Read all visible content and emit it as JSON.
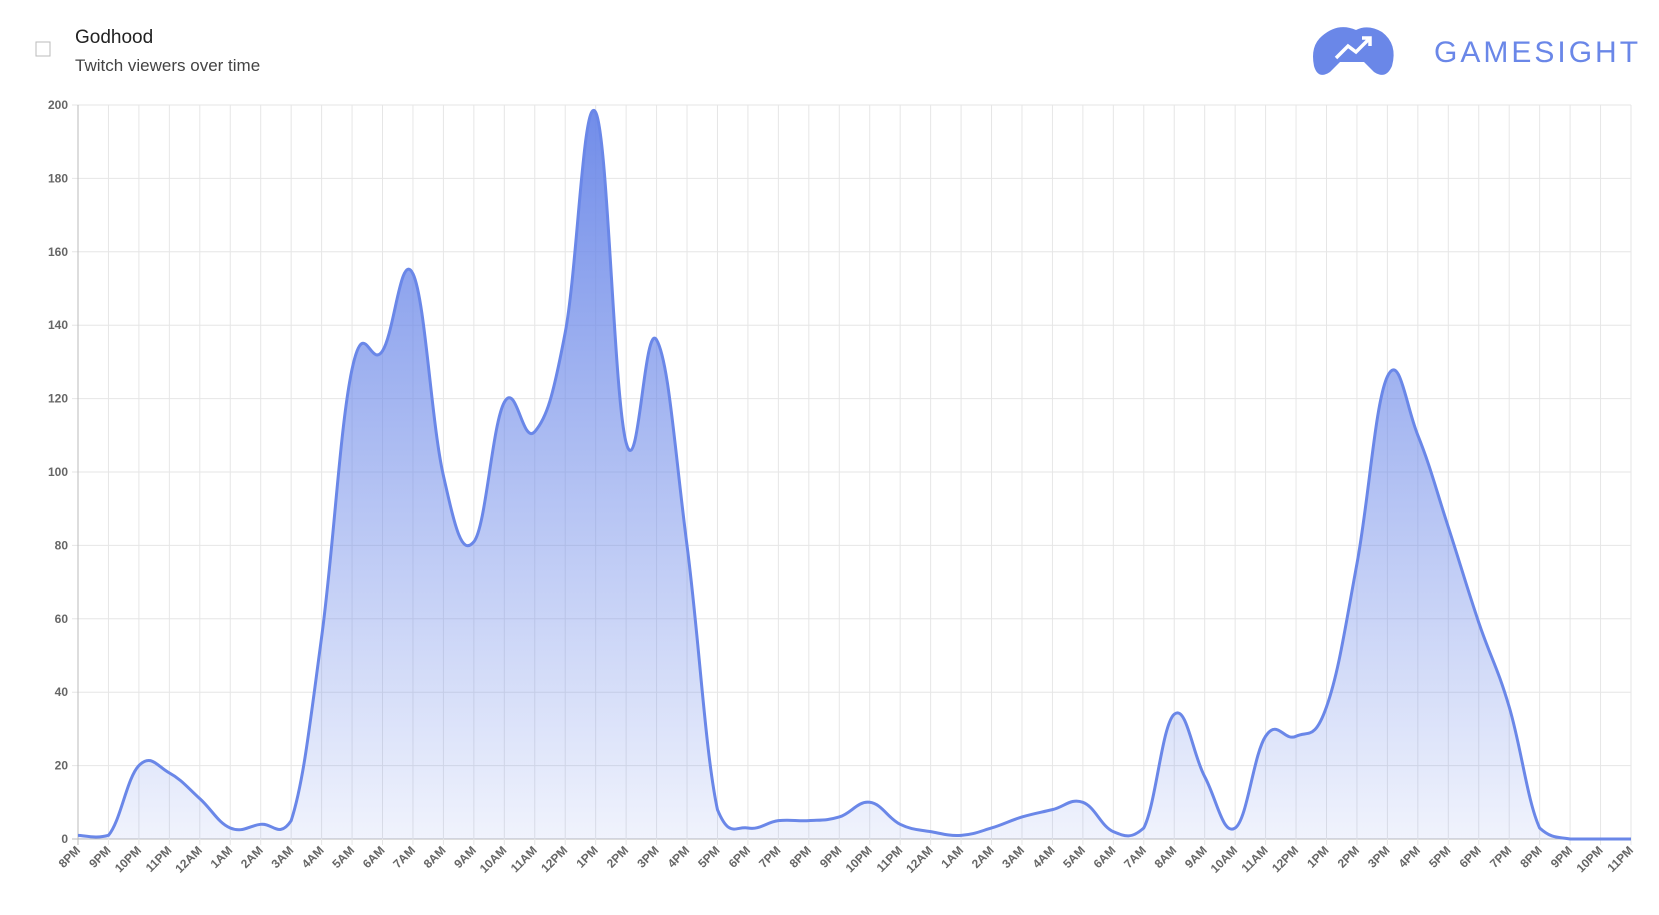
{
  "brand": "GAMESIGHT",
  "chart_data": {
    "type": "line",
    "title": "Godhood",
    "subtitle": "Twitch viewers over time",
    "categories": [
      "8PM",
      "9PM",
      "10PM",
      "11PM",
      "12AM",
      "1AM",
      "2AM",
      "3AM",
      "4AM",
      "5AM",
      "6AM",
      "7AM",
      "8AM",
      "9AM",
      "10AM",
      "11AM",
      "12PM",
      "1PM",
      "2PM",
      "3PM",
      "4PM",
      "5PM",
      "6PM",
      "7PM",
      "8PM",
      "9PM",
      "10PM",
      "11PM",
      "12AM",
      "1AM",
      "2AM",
      "3AM",
      "4AM",
      "5AM",
      "6AM",
      "7AM",
      "8AM",
      "9AM",
      "10AM",
      "11AM",
      "12PM",
      "1PM",
      "2PM",
      "3PM",
      "4PM",
      "5PM",
      "6PM",
      "7PM",
      "8PM",
      "9PM",
      "10PM",
      "11PM"
    ],
    "values": [
      1,
      1,
      20,
      18,
      11,
      3,
      4,
      5,
      55,
      128,
      133,
      154,
      99,
      81,
      119,
      111,
      138,
      198,
      108,
      136,
      80,
      8,
      3,
      5,
      5,
      6,
      10,
      4,
      2,
      1,
      3,
      6,
      8,
      10,
      2,
      3,
      34,
      17,
      3,
      28,
      28,
      36,
      75,
      126,
      110,
      85,
      59,
      36,
      3,
      0,
      0,
      0
    ],
    "color": "#6a87e8",
    "ylim": [
      0,
      200
    ],
    "yticks": [
      0,
      20,
      40,
      60,
      80,
      100,
      120,
      140,
      160,
      180,
      200
    ],
    "grid": true
  }
}
